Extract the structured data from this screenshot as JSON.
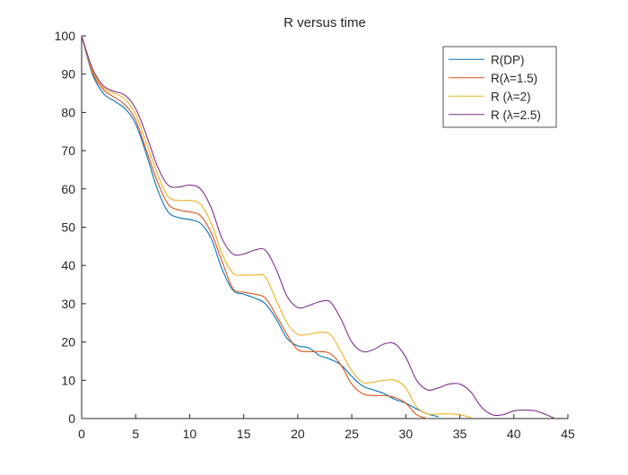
{
  "chart_data": {
    "type": "line",
    "title": "R versus time",
    "xlabel": "",
    "ylabel": "",
    "xlim": [
      0,
      45
    ],
    "ylim": [
      0,
      100
    ],
    "xticks": [
      0,
      5,
      10,
      15,
      20,
      25,
      30,
      35,
      40,
      45
    ],
    "yticks": [
      0,
      10,
      20,
      30,
      40,
      50,
      60,
      70,
      80,
      90,
      100
    ],
    "grid": false,
    "legend_position": "top-right",
    "series": [
      {
        "name": "R(DP)",
        "color": "#0072BD",
        "points": [
          [
            0,
            100
          ],
          [
            1,
            90
          ],
          [
            2,
            85
          ],
          [
            3,
            83
          ],
          [
            4,
            81
          ],
          [
            5,
            77
          ],
          [
            6,
            69
          ],
          [
            7,
            60
          ],
          [
            8,
            54
          ],
          [
            9,
            52.5
          ],
          [
            10,
            52
          ],
          [
            11,
            51
          ],
          [
            12,
            47
          ],
          [
            13,
            39
          ],
          [
            14,
            33.5
          ],
          [
            15,
            32.5
          ],
          [
            16,
            31.5
          ],
          [
            17,
            30
          ],
          [
            18,
            26
          ],
          [
            19,
            21
          ],
          [
            20,
            19
          ],
          [
            21,
            18.5
          ],
          [
            22,
            16.5
          ],
          [
            23,
            15.5
          ],
          [
            24,
            14
          ],
          [
            25,
            11
          ],
          [
            26,
            8.5
          ],
          [
            27,
            7.5
          ],
          [
            28,
            6.5
          ],
          [
            29,
            5
          ],
          [
            30,
            4
          ],
          [
            31,
            2.5
          ],
          [
            32,
            1.2
          ],
          [
            33,
            0.5
          ]
        ]
      },
      {
        "name": "R(λ=1.5)",
        "color": "#D95319",
        "points": [
          [
            0,
            100
          ],
          [
            1,
            90.5
          ],
          [
            2,
            86
          ],
          [
            3,
            84
          ],
          [
            4,
            82
          ],
          [
            5,
            78
          ],
          [
            6,
            70
          ],
          [
            7,
            62
          ],
          [
            8,
            56
          ],
          [
            9,
            54.5
          ],
          [
            10,
            54
          ],
          [
            11,
            53
          ],
          [
            12,
            48.5
          ],
          [
            13,
            41
          ],
          [
            14,
            34
          ],
          [
            15,
            33
          ],
          [
            16,
            32.5
          ],
          [
            17,
            31.5
          ],
          [
            18,
            27
          ],
          [
            19,
            22
          ],
          [
            20,
            18
          ],
          [
            21,
            17.5
          ],
          [
            22,
            17.5
          ],
          [
            23,
            17
          ],
          [
            24,
            14
          ],
          [
            25,
            9
          ],
          [
            26,
            6.5
          ],
          [
            27,
            6
          ],
          [
            28,
            6
          ],
          [
            29,
            5.5
          ],
          [
            30,
            4
          ],
          [
            31,
            1
          ],
          [
            32,
            0
          ]
        ]
      },
      {
        "name": "R (λ=2)",
        "color": "#EDB120",
        "points": [
          [
            0,
            100
          ],
          [
            1,
            91
          ],
          [
            2,
            86.5
          ],
          [
            3,
            85
          ],
          [
            4,
            83.5
          ],
          [
            5,
            79.5
          ],
          [
            6,
            72
          ],
          [
            7,
            64
          ],
          [
            8,
            58
          ],
          [
            9,
            57
          ],
          [
            10,
            57
          ],
          [
            11,
            56
          ],
          [
            12,
            51
          ],
          [
            13,
            43
          ],
          [
            14,
            38
          ],
          [
            15,
            37.5
          ],
          [
            16,
            37.5
          ],
          [
            17,
            37
          ],
          [
            18,
            31
          ],
          [
            19,
            25
          ],
          [
            20,
            22
          ],
          [
            21,
            22
          ],
          [
            22,
            22.5
          ],
          [
            23,
            22
          ],
          [
            24,
            17.5
          ],
          [
            25,
            12.5
          ],
          [
            26,
            9.5
          ],
          [
            27,
            9.5
          ],
          [
            28,
            10
          ],
          [
            29,
            10
          ],
          [
            30,
            8
          ],
          [
            31,
            3
          ],
          [
            32,
            1.2
          ],
          [
            33,
            1.2
          ],
          [
            34,
            1.2
          ],
          [
            35,
            1
          ],
          [
            36,
            0.3
          ]
        ]
      },
      {
        "name": "R (λ=2.5)",
        "color": "#7E2F8E",
        "points": [
          [
            0,
            100
          ],
          [
            1,
            91.5
          ],
          [
            2,
            87
          ],
          [
            3,
            85.5
          ],
          [
            4,
            84.5
          ],
          [
            5,
            81
          ],
          [
            6,
            74
          ],
          [
            7,
            66
          ],
          [
            8,
            61
          ],
          [
            9,
            60.5
          ],
          [
            10,
            61
          ],
          [
            11,
            60
          ],
          [
            12,
            55
          ],
          [
            13,
            47
          ],
          [
            14,
            43
          ],
          [
            15,
            43
          ],
          [
            16,
            44
          ],
          [
            17,
            44
          ],
          [
            18,
            39
          ],
          [
            19,
            32
          ],
          [
            20,
            29
          ],
          [
            21,
            29.5
          ],
          [
            22,
            30.5
          ],
          [
            23,
            30.5
          ],
          [
            24,
            26
          ],
          [
            25,
            20
          ],
          [
            26,
            17.5
          ],
          [
            27,
            18
          ],
          [
            28,
            19.5
          ],
          [
            29,
            19.5
          ],
          [
            30,
            16
          ],
          [
            31,
            10
          ],
          [
            32,
            7.5
          ],
          [
            33,
            8
          ],
          [
            34,
            9
          ],
          [
            35,
            9
          ],
          [
            36,
            7
          ],
          [
            37,
            3
          ],
          [
            38,
            1
          ],
          [
            39,
            1
          ],
          [
            40,
            2
          ],
          [
            41,
            2.2
          ],
          [
            42,
            2
          ],
          [
            43,
            1
          ],
          [
            43.8,
            0
          ]
        ]
      }
    ]
  }
}
